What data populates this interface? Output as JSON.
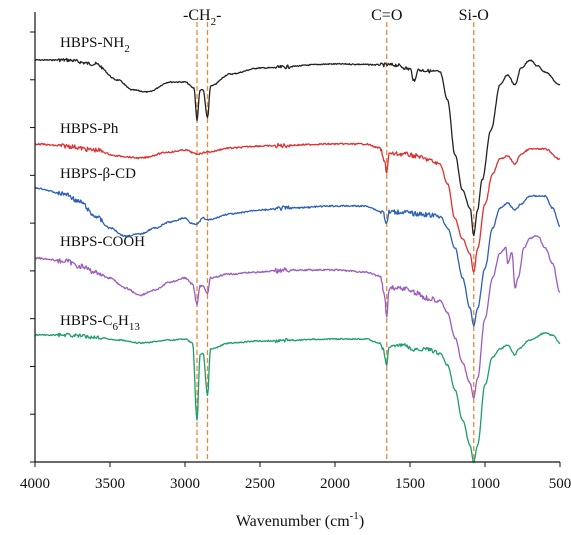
{
  "chart_data": {
    "type": "line",
    "title": "",
    "xlabel": "Wavenumber (cm",
    "xlabel_sup": "-1",
    "xlabel_close": ")",
    "ylabel": "",
    "xlim": [
      4000,
      500
    ],
    "x_inverted": true,
    "xticks": [
      "4000",
      "3500",
      "3000",
      "2500",
      "2000",
      "1500",
      "1000",
      "500"
    ],
    "y_tick_count": 10,
    "grid": false,
    "legend": "none",
    "annotations": [
      {
        "id": "ch2",
        "base": "-CH",
        "sub": "2",
        "tail": "-",
        "lines": [
          2920,
          2850
        ]
      },
      {
        "id": "co",
        "base": "C=O",
        "sub": "",
        "tail": "",
        "lines": [
          1655
        ]
      },
      {
        "id": "sio",
        "base": "Si-O",
        "sub": "",
        "tail": "",
        "lines": [
          1075
        ]
      }
    ],
    "annotation_line_color": "#e8893a",
    "series": [
      {
        "id": "nh2",
        "base": "HBPS-NH",
        "sub": "2",
        "color": "#222222",
        "offset": 0,
        "noise": 1.2,
        "curve": [
          [
            4000,
            0
          ],
          [
            3800,
            0
          ],
          [
            3600,
            4
          ],
          [
            3450,
            20
          ],
          [
            3350,
            30
          ],
          [
            3250,
            32
          ],
          [
            3100,
            22
          ],
          [
            3000,
            22
          ],
          [
            2940,
            28
          ],
          [
            2920,
            60
          ],
          [
            2900,
            30
          ],
          [
            2880,
            30
          ],
          [
            2850,
            58
          ],
          [
            2830,
            26
          ],
          [
            2700,
            14
          ],
          [
            2500,
            8
          ],
          [
            2000,
            4
          ],
          [
            1600,
            5
          ],
          [
            1500,
            9
          ],
          [
            1470,
            22
          ],
          [
            1450,
            10
          ],
          [
            1300,
            12
          ],
          [
            1250,
            40
          ],
          [
            1200,
            95
          ],
          [
            1150,
            130
          ],
          [
            1100,
            148
          ],
          [
            1075,
            175
          ],
          [
            1050,
            150
          ],
          [
            1020,
            120
          ],
          [
            960,
            70
          ],
          [
            900,
            25
          ],
          [
            850,
            15
          ],
          [
            800,
            25
          ],
          [
            760,
            8
          ],
          [
            700,
            0
          ],
          [
            650,
            6
          ],
          [
            600,
            12
          ],
          [
            500,
            25
          ]
        ]
      },
      {
        "id": "ph",
        "base": "HBPS-Ph",
        "sub": "",
        "color": "#e03030",
        "offset": 110,
        "noise": 1.5,
        "curve": [
          [
            4000,
            0
          ],
          [
            3800,
            2
          ],
          [
            3600,
            6
          ],
          [
            3450,
            12
          ],
          [
            3300,
            14
          ],
          [
            3100,
            8
          ],
          [
            3000,
            6
          ],
          [
            2920,
            10
          ],
          [
            2850,
            8
          ],
          [
            2700,
            4
          ],
          [
            2500,
            2
          ],
          [
            2000,
            0
          ],
          [
            1800,
            0
          ],
          [
            1700,
            4
          ],
          [
            1670,
            18
          ],
          [
            1655,
            28
          ],
          [
            1640,
            10
          ],
          [
            1550,
            10
          ],
          [
            1450,
            12
          ],
          [
            1400,
            15
          ],
          [
            1300,
            20
          ],
          [
            1250,
            40
          ],
          [
            1200,
            75
          ],
          [
            1150,
            95
          ],
          [
            1100,
            110
          ],
          [
            1075,
            128
          ],
          [
            1050,
            105
          ],
          [
            1000,
            60
          ],
          [
            950,
            30
          ],
          [
            900,
            15
          ],
          [
            850,
            12
          ],
          [
            800,
            20
          ],
          [
            760,
            10
          ],
          [
            700,
            5
          ],
          [
            600,
            5
          ],
          [
            500,
            15
          ]
        ]
      },
      {
        "id": "bcd",
        "base": "HBPS-β-CD",
        "sub": "",
        "color": "#2b5fb8",
        "offset": 150,
        "noise": 1.5,
        "curve": [
          [
            4000,
            0
          ],
          [
            3800,
            6
          ],
          [
            3700,
            14
          ],
          [
            3600,
            28
          ],
          [
            3500,
            40
          ],
          [
            3400,
            48
          ],
          [
            3300,
            46
          ],
          [
            3200,
            40
          ],
          [
            3100,
            34
          ],
          [
            3000,
            30
          ],
          [
            2960,
            35
          ],
          [
            2920,
            36
          ],
          [
            2880,
            30
          ],
          [
            2850,
            32
          ],
          [
            2700,
            26
          ],
          [
            2500,
            22
          ],
          [
            2300,
            20
          ],
          [
            2000,
            18
          ],
          [
            1800,
            18
          ],
          [
            1680,
            24
          ],
          [
            1655,
            36
          ],
          [
            1640,
            24
          ],
          [
            1550,
            24
          ],
          [
            1450,
            26
          ],
          [
            1300,
            28
          ],
          [
            1250,
            40
          ],
          [
            1200,
            60
          ],
          [
            1150,
            90
          ],
          [
            1100,
            120
          ],
          [
            1075,
            138
          ],
          [
            1050,
            120
          ],
          [
            1000,
            80
          ],
          [
            950,
            40
          ],
          [
            900,
            20
          ],
          [
            850,
            15
          ],
          [
            800,
            22
          ],
          [
            760,
            16
          ],
          [
            700,
            8
          ],
          [
            600,
            8
          ],
          [
            550,
            20
          ],
          [
            500,
            38
          ]
        ]
      },
      {
        "id": "cooh",
        "base": "HBPS-COOH",
        "sub": "",
        "color": "#9a5cbf",
        "offset": 258,
        "noise": 1.7,
        "curve": [
          [
            4000,
            0
          ],
          [
            3800,
            3
          ],
          [
            3700,
            8
          ],
          [
            3600,
            14
          ],
          [
            3500,
            20
          ],
          [
            3400,
            30
          ],
          [
            3300,
            37
          ],
          [
            3200,
            32
          ],
          [
            3100,
            24
          ],
          [
            3000,
            20
          ],
          [
            2950,
            26
          ],
          [
            2920,
            46
          ],
          [
            2900,
            28
          ],
          [
            2880,
            28
          ],
          [
            2850,
            35
          ],
          [
            2830,
            20
          ],
          [
            2700,
            16
          ],
          [
            2500,
            14
          ],
          [
            2300,
            12
          ],
          [
            2000,
            12
          ],
          [
            1800,
            14
          ],
          [
            1700,
            18
          ],
          [
            1670,
            36
          ],
          [
            1655,
            60
          ],
          [
            1640,
            30
          ],
          [
            1550,
            30
          ],
          [
            1450,
            35
          ],
          [
            1400,
            40
          ],
          [
            1300,
            42
          ],
          [
            1250,
            55
          ],
          [
            1200,
            80
          ],
          [
            1150,
            105
          ],
          [
            1100,
            125
          ],
          [
            1075,
            140
          ],
          [
            1050,
            120
          ],
          [
            1000,
            60
          ],
          [
            950,
            20
          ],
          [
            900,
            -5
          ],
          [
            860,
            -10
          ],
          [
            850,
            5
          ],
          [
            820,
            -5
          ],
          [
            800,
            30
          ],
          [
            780,
            20
          ],
          [
            740,
            -10
          ],
          [
            700,
            -20
          ],
          [
            650,
            -22
          ],
          [
            600,
            -10
          ],
          [
            550,
            5
          ],
          [
            500,
            35
          ]
        ]
      },
      {
        "id": "c6h13",
        "base": "HBPS-C",
        "sub": "6",
        "mid": "H",
        "sub2": "13",
        "color": "#1c9e6a",
        "offset": 335,
        "noise": 1.2,
        "curve": [
          [
            4000,
            0
          ],
          [
            3800,
            0
          ],
          [
            3600,
            2
          ],
          [
            3450,
            5
          ],
          [
            3300,
            8
          ],
          [
            3100,
            5
          ],
          [
            3000,
            4
          ],
          [
            2950,
            8
          ],
          [
            2920,
            85
          ],
          [
            2900,
            20
          ],
          [
            2880,
            18
          ],
          [
            2850,
            60
          ],
          [
            2830,
            14
          ],
          [
            2700,
            8
          ],
          [
            2500,
            6
          ],
          [
            2000,
            4
          ],
          [
            1800,
            4
          ],
          [
            1700,
            8
          ],
          [
            1680,
            14
          ],
          [
            1655,
            30
          ],
          [
            1640,
            12
          ],
          [
            1550,
            10
          ],
          [
            1470,
            15
          ],
          [
            1400,
            14
          ],
          [
            1300,
            18
          ],
          [
            1250,
            30
          ],
          [
            1200,
            55
          ],
          [
            1150,
            85
          ],
          [
            1100,
            110
          ],
          [
            1075,
            127
          ],
          [
            1050,
            110
          ],
          [
            1000,
            50
          ],
          [
            950,
            22
          ],
          [
            900,
            14
          ],
          [
            850,
            10
          ],
          [
            800,
            20
          ],
          [
            780,
            14
          ],
          [
            700,
            5
          ],
          [
            600,
            -2
          ],
          [
            550,
            0
          ],
          [
            500,
            8
          ]
        ]
      }
    ]
  }
}
